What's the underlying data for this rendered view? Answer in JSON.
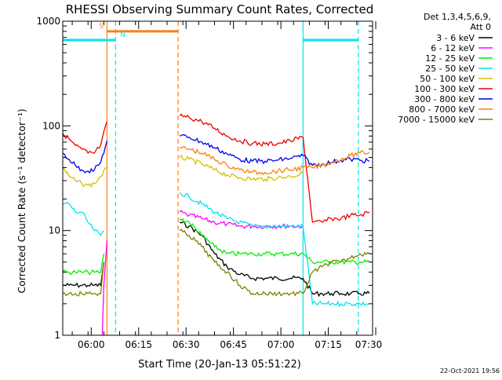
{
  "chart_data": {
    "type": "line",
    "title": "RHESSI Observing Summary Count Rates, Corrected",
    "xlabel": "Start Time (20-Jan-13 05:51:22)",
    "ylabel": "Corrected Count Rate (s⁻¹ detector⁻¹)",
    "y_scale": "log",
    "ylim": [
      1,
      1000
    ],
    "xlim_minutes_after_0551": [
      0,
      98
    ],
    "x_tick_labels": [
      "06:00",
      "06:15",
      "06:30",
      "06:45",
      "07:00",
      "07:15",
      "07:30"
    ],
    "x_tick_minutes_after_0551": [
      9,
      24,
      39,
      54,
      69,
      84,
      99
    ],
    "y_tick_labels": [
      "1",
      "10",
      "100",
      "1000"
    ],
    "legend": {
      "placement": "right",
      "header": [
        "Det 1,3,4,5,6,9,",
        "Att 0"
      ]
    },
    "footer_date": "22-Oct-2021 19:56",
    "time_bars": [
      {
        "label": "S",
        "start_min": 14.0,
        "end_min": 36.5,
        "level": 800,
        "color": "#ff7f0e"
      },
      {
        "label": "N",
        "start_min": 0.0,
        "end_min": 16.7,
        "level": 660,
        "color": "#00e5ee"
      },
      {
        "label": "",
        "start_min": 76.0,
        "end_min": 93.5,
        "level": 660,
        "color": "#00e5ee"
      }
    ],
    "v_lines": [
      {
        "min": 14.0,
        "color": "#ff7f0e",
        "style": "solid"
      },
      {
        "min": 16.7,
        "color": "#00e5ee",
        "style": "dashed"
      },
      {
        "min": 36.5,
        "color": "#ff7f0e",
        "style": "dashed"
      },
      {
        "min": 76.0,
        "color": "#00e5ee",
        "style": "solid"
      },
      {
        "min": 93.5,
        "color": "#00e5ee",
        "style": "dashed"
      }
    ],
    "series": [
      {
        "name": "3 - 6 keV",
        "color": "#000000",
        "x": [
          0,
          2,
          4,
          6,
          8,
          10,
          12,
          13,
          37,
          40,
          44,
          48,
          52,
          56,
          60,
          64,
          68,
          72,
          76,
          79,
          82,
          85,
          88,
          91,
          94,
          97
        ],
        "y": [
          3,
          3,
          3,
          3,
          3,
          3,
          3,
          5,
          12,
          11,
          9,
          6,
          4.5,
          3.8,
          3.5,
          3.5,
          3.5,
          3.5,
          3.5,
          2.5,
          2.5,
          2.5,
          2.5,
          2.5,
          2.5,
          2.5
        ]
      },
      {
        "name": "6 - 12 keV",
        "color": "#ff00ff",
        "x": [
          12.5,
          13,
          14,
          37,
          40,
          44,
          48,
          52,
          56,
          60,
          64,
          68,
          72,
          76
        ],
        "y": [
          1,
          3,
          8,
          15,
          14,
          13,
          12,
          11.5,
          11,
          11,
          11,
          11,
          11,
          11
        ]
      },
      {
        "name": "12 - 25 keV",
        "color": "#00ee00",
        "x": [
          0,
          2,
          4,
          6,
          8,
          10,
          12,
          13,
          37,
          40,
          44,
          48,
          52,
          56,
          60,
          64,
          68,
          72,
          76,
          79,
          82,
          85,
          88,
          91,
          94,
          97
        ],
        "y": [
          4,
          4,
          4,
          4,
          4,
          4,
          4,
          6,
          13,
          12,
          9,
          7,
          6,
          6,
          6,
          6,
          6,
          6,
          6,
          5,
          5,
          5,
          5,
          5,
          5,
          5
        ]
      },
      {
        "name": "25 - 50 keV",
        "color": "#00e5ee",
        "x": [
          0,
          2,
          4,
          6,
          8,
          10,
          12,
          13,
          37,
          40,
          44,
          48,
          52,
          56,
          60,
          64,
          68,
          72,
          76,
          79,
          82,
          85,
          88,
          91,
          94,
          97
        ],
        "y": [
          18,
          18,
          15,
          15,
          12,
          10,
          9,
          10,
          23,
          21,
          18,
          15,
          13,
          12,
          11,
          11,
          11,
          11,
          11,
          2,
          2,
          2,
          2,
          2,
          2,
          2
        ]
      },
      {
        "name": "50 - 100 keV",
        "color": "#d4c000",
        "x": [
          0,
          2,
          4,
          6,
          8,
          10,
          12,
          14,
          37,
          40,
          44,
          48,
          52,
          56,
          60,
          64,
          68,
          72,
          76
        ],
        "y": [
          40,
          33,
          30,
          28,
          27,
          28,
          33,
          40,
          50,
          48,
          43,
          38,
          34,
          32,
          31,
          31,
          32,
          33,
          35
        ]
      },
      {
        "name": "100 - 300 keV",
        "color": "#ee0000",
        "x": [
          0,
          2,
          4,
          6,
          8,
          10,
          12,
          14,
          37,
          40,
          44,
          48,
          52,
          56,
          60,
          64,
          68,
          72,
          76,
          79,
          82,
          85,
          88,
          91,
          94,
          97
        ],
        "y": [
          85,
          75,
          65,
          60,
          55,
          55,
          65,
          110,
          125,
          120,
          110,
          95,
          80,
          72,
          68,
          67,
          68,
          72,
          78,
          12,
          12,
          13,
          13,
          14,
          14,
          15
        ]
      },
      {
        "name": "300 - 800 keV",
        "color": "#0000ee",
        "x": [
          0,
          2,
          4,
          6,
          8,
          10,
          12,
          14,
          37,
          40,
          44,
          48,
          52,
          56,
          60,
          64,
          68,
          72,
          76,
          79,
          82,
          85,
          88,
          91,
          94,
          97
        ],
        "y": [
          55,
          48,
          42,
          38,
          37,
          38,
          45,
          72,
          80,
          78,
          70,
          62,
          54,
          48,
          46,
          46,
          47,
          49,
          52,
          42,
          43,
          45,
          47,
          48,
          47,
          46
        ]
      },
      {
        "name": "800 - 7000 keV",
        "color": "#ff7f0e",
        "x": [
          37,
          40,
          44,
          48,
          52,
          56,
          60,
          64,
          68,
          72,
          76,
          79,
          82,
          85,
          88,
          91,
          94,
          97
        ],
        "y": [
          62,
          60,
          55,
          48,
          42,
          38,
          36,
          36,
          37,
          38,
          40,
          40,
          42,
          45,
          48,
          52,
          55,
          56
        ]
      },
      {
        "name": "7000 - 15000 keV",
        "color": "#808000",
        "x": [
          0,
          2,
          4,
          6,
          8,
          10,
          12,
          13,
          37,
          40,
          44,
          48,
          52,
          56,
          60,
          64,
          68,
          72,
          76,
          79,
          82,
          85,
          88,
          91,
          94,
          97
        ],
        "y": [
          2.5,
          2.5,
          2.5,
          2.5,
          2.5,
          2.5,
          2.5,
          5,
          10,
          9,
          7,
          5,
          4,
          3,
          2.5,
          2.5,
          2.5,
          2.5,
          2.5,
          4,
          4.5,
          5,
          5,
          5.5,
          6,
          6
        ]
      }
    ]
  }
}
